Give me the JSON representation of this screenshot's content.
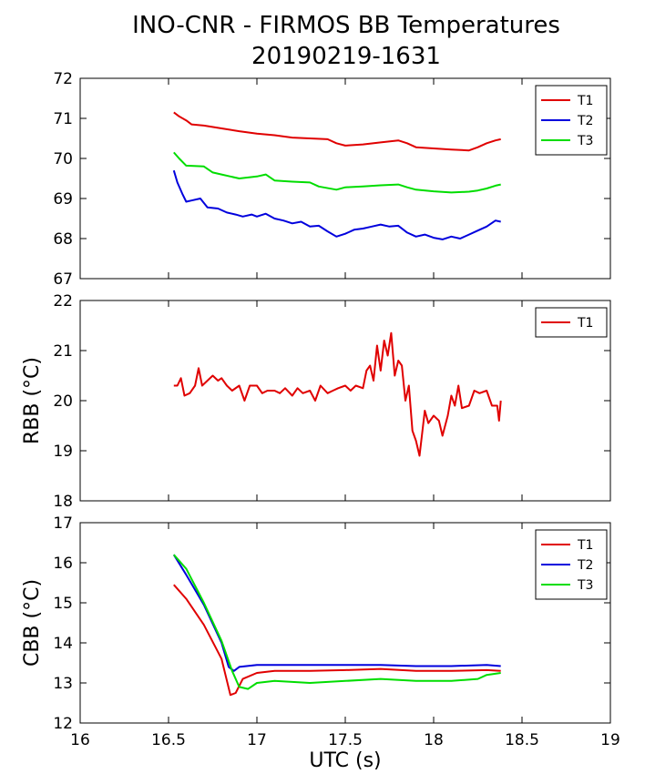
{
  "figure": {
    "title_line1": "INO-CNR - FIRMOS BB Temperatures",
    "title_line2": "20190219-1631"
  },
  "colors": {
    "T1": "#e00000",
    "T2": "#0000dd",
    "T3": "#00dd00"
  },
  "chart_data": [
    {
      "type": "line",
      "title": "",
      "xlabel": "",
      "ylabel": "",
      "xlim": [
        16,
        19
      ],
      "ylim": [
        67,
        72
      ],
      "xticks": [
        16,
        16.5,
        17,
        17.5,
        18,
        18.5,
        19
      ],
      "yticks": [
        67,
        68,
        69,
        70,
        71,
        72
      ],
      "show_xtick_labels": false,
      "legend": "top-right",
      "series": [
        {
          "name": "T1",
          "color": "#e00000",
          "points": [
            [
              16.53,
              71.15
            ],
            [
              16.56,
              71.05
            ],
            [
              16.6,
              70.95
            ],
            [
              16.63,
              70.85
            ],
            [
              16.7,
              70.82
            ],
            [
              16.8,
              70.75
            ],
            [
              16.9,
              70.68
            ],
            [
              17.0,
              70.62
            ],
            [
              17.1,
              70.58
            ],
            [
              17.2,
              70.52
            ],
            [
              17.3,
              70.5
            ],
            [
              17.4,
              70.48
            ],
            [
              17.45,
              70.38
            ],
            [
              17.5,
              70.32
            ],
            [
              17.6,
              70.35
            ],
            [
              17.7,
              70.4
            ],
            [
              17.8,
              70.45
            ],
            [
              17.85,
              70.38
            ],
            [
              17.9,
              70.28
            ],
            [
              18.0,
              70.25
            ],
            [
              18.1,
              70.22
            ],
            [
              18.2,
              70.2
            ],
            [
              18.25,
              70.28
            ],
            [
              18.3,
              70.38
            ],
            [
              18.35,
              70.45
            ],
            [
              18.38,
              70.48
            ]
          ]
        },
        {
          "name": "T2",
          "color": "#0000dd",
          "points": [
            [
              16.53,
              69.7
            ],
            [
              16.55,
              69.4
            ],
            [
              16.58,
              69.1
            ],
            [
              16.6,
              68.92
            ],
            [
              16.63,
              68.95
            ],
            [
              16.68,
              69.0
            ],
            [
              16.72,
              68.78
            ],
            [
              16.78,
              68.75
            ],
            [
              16.83,
              68.65
            ],
            [
              16.88,
              68.6
            ],
            [
              16.92,
              68.55
            ],
            [
              16.97,
              68.6
            ],
            [
              17.0,
              68.55
            ],
            [
              17.05,
              68.62
            ],
            [
              17.1,
              68.5
            ],
            [
              17.15,
              68.45
            ],
            [
              17.2,
              68.38
            ],
            [
              17.25,
              68.42
            ],
            [
              17.3,
              68.3
            ],
            [
              17.35,
              68.32
            ],
            [
              17.4,
              68.18
            ],
            [
              17.45,
              68.05
            ],
            [
              17.5,
              68.12
            ],
            [
              17.55,
              68.22
            ],
            [
              17.6,
              68.25
            ],
            [
              17.65,
              68.3
            ],
            [
              17.7,
              68.35
            ],
            [
              17.75,
              68.3
            ],
            [
              17.8,
              68.32
            ],
            [
              17.85,
              68.15
            ],
            [
              17.9,
              68.05
            ],
            [
              17.95,
              68.1
            ],
            [
              18.0,
              68.02
            ],
            [
              18.05,
              67.98
            ],
            [
              18.1,
              68.05
            ],
            [
              18.15,
              68.0
            ],
            [
              18.2,
              68.1
            ],
            [
              18.25,
              68.2
            ],
            [
              18.3,
              68.3
            ],
            [
              18.35,
              68.45
            ],
            [
              18.38,
              68.42
            ]
          ]
        },
        {
          "name": "T3",
          "color": "#00dd00",
          "points": [
            [
              16.53,
              70.15
            ],
            [
              16.56,
              70.0
            ],
            [
              16.6,
              69.82
            ],
            [
              16.7,
              69.8
            ],
            [
              16.75,
              69.65
            ],
            [
              16.8,
              69.6
            ],
            [
              16.85,
              69.55
            ],
            [
              16.9,
              69.5
            ],
            [
              17.0,
              69.55
            ],
            [
              17.05,
              69.6
            ],
            [
              17.1,
              69.45
            ],
            [
              17.2,
              69.42
            ],
            [
              17.3,
              69.4
            ],
            [
              17.35,
              69.3
            ],
            [
              17.45,
              69.22
            ],
            [
              17.5,
              69.28
            ],
            [
              17.6,
              69.3
            ],
            [
              17.7,
              69.33
            ],
            [
              17.8,
              69.35
            ],
            [
              17.85,
              69.28
            ],
            [
              17.9,
              69.22
            ],
            [
              18.0,
              69.18
            ],
            [
              18.1,
              69.15
            ],
            [
              18.2,
              69.17
            ],
            [
              18.25,
              69.2
            ],
            [
              18.3,
              69.25
            ],
            [
              18.35,
              69.32
            ],
            [
              18.38,
              69.35
            ]
          ]
        }
      ]
    },
    {
      "type": "line",
      "title": "",
      "xlabel": "",
      "ylabel": "RBB (°C)",
      "xlim": [
        16,
        19
      ],
      "ylim": [
        18,
        22
      ],
      "xticks": [
        16,
        16.5,
        17,
        17.5,
        18,
        18.5,
        19
      ],
      "yticks": [
        18,
        19,
        20,
        21,
        22
      ],
      "show_xtick_labels": false,
      "legend": "top-right",
      "series": [
        {
          "name": "T1",
          "color": "#e00000",
          "points": [
            [
              16.53,
              20.3
            ],
            [
              16.55,
              20.3
            ],
            [
              16.57,
              20.45
            ],
            [
              16.59,
              20.1
            ],
            [
              16.62,
              20.15
            ],
            [
              16.65,
              20.3
            ],
            [
              16.67,
              20.65
            ],
            [
              16.69,
              20.3
            ],
            [
              16.72,
              20.4
            ],
            [
              16.75,
              20.5
            ],
            [
              16.78,
              20.4
            ],
            [
              16.8,
              20.45
            ],
            [
              16.83,
              20.3
            ],
            [
              16.86,
              20.2
            ],
            [
              16.9,
              20.3
            ],
            [
              16.93,
              20.0
            ],
            [
              16.96,
              20.3
            ],
            [
              17.0,
              20.3
            ],
            [
              17.03,
              20.15
            ],
            [
              17.06,
              20.2
            ],
            [
              17.1,
              20.2
            ],
            [
              17.13,
              20.15
            ],
            [
              17.16,
              20.25
            ],
            [
              17.2,
              20.1
            ],
            [
              17.23,
              20.25
            ],
            [
              17.26,
              20.15
            ],
            [
              17.3,
              20.2
            ],
            [
              17.33,
              20.0
            ],
            [
              17.36,
              20.3
            ],
            [
              17.4,
              20.15
            ],
            [
              17.43,
              20.2
            ],
            [
              17.46,
              20.25
            ],
            [
              17.5,
              20.3
            ],
            [
              17.53,
              20.2
            ],
            [
              17.56,
              20.3
            ],
            [
              17.6,
              20.25
            ],
            [
              17.62,
              20.6
            ],
            [
              17.64,
              20.7
            ],
            [
              17.66,
              20.4
            ],
            [
              17.68,
              21.1
            ],
            [
              17.7,
              20.6
            ],
            [
              17.72,
              21.2
            ],
            [
              17.74,
              20.9
            ],
            [
              17.76,
              21.35
            ],
            [
              17.78,
              20.5
            ],
            [
              17.8,
              20.8
            ],
            [
              17.82,
              20.7
            ],
            [
              17.84,
              20.0
            ],
            [
              17.86,
              20.3
            ],
            [
              17.88,
              19.4
            ],
            [
              17.9,
              19.2
            ],
            [
              17.92,
              18.9
            ],
            [
              17.95,
              19.8
            ],
            [
              17.97,
              19.55
            ],
            [
              18.0,
              19.7
            ],
            [
              18.03,
              19.6
            ],
            [
              18.05,
              19.3
            ],
            [
              18.08,
              19.7
            ],
            [
              18.1,
              20.1
            ],
            [
              18.12,
              19.9
            ],
            [
              18.14,
              20.3
            ],
            [
              18.16,
              19.85
            ],
            [
              18.2,
              19.9
            ],
            [
              18.23,
              20.2
            ],
            [
              18.26,
              20.15
            ],
            [
              18.3,
              20.2
            ],
            [
              18.33,
              19.9
            ],
            [
              18.36,
              19.9
            ],
            [
              18.37,
              19.6
            ],
            [
              18.38,
              20.0
            ]
          ]
        }
      ]
    },
    {
      "type": "line",
      "title": "",
      "xlabel": "UTC (s)",
      "ylabel": "CBB (°C)",
      "xlim": [
        16,
        19
      ],
      "ylim": [
        12,
        17
      ],
      "xticks": [
        16,
        16.5,
        17,
        17.5,
        18,
        18.5,
        19
      ],
      "yticks": [
        12,
        13,
        14,
        15,
        16,
        17
      ],
      "show_xtick_labels": true,
      "legend": "top-right",
      "series": [
        {
          "name": "T1",
          "color": "#e00000",
          "points": [
            [
              16.53,
              15.45
            ],
            [
              16.6,
              15.1
            ],
            [
              16.7,
              14.45
            ],
            [
              16.8,
              13.6
            ],
            [
              16.85,
              12.7
            ],
            [
              16.88,
              12.75
            ],
            [
              16.92,
              13.1
            ],
            [
              17.0,
              13.25
            ],
            [
              17.1,
              13.3
            ],
            [
              17.3,
              13.3
            ],
            [
              17.5,
              13.32
            ],
            [
              17.7,
              13.35
            ],
            [
              17.9,
              13.3
            ],
            [
              18.1,
              13.3
            ],
            [
              18.3,
              13.32
            ],
            [
              18.38,
              13.3
            ]
          ]
        },
        {
          "name": "T2",
          "color": "#0000dd",
          "points": [
            [
              16.53,
              16.2
            ],
            [
              16.6,
              15.7
            ],
            [
              16.7,
              14.95
            ],
            [
              16.8,
              14.0
            ],
            [
              16.84,
              13.4
            ],
            [
              16.87,
              13.3
            ],
            [
              16.9,
              13.4
            ],
            [
              17.0,
              13.45
            ],
            [
              17.3,
              13.45
            ],
            [
              17.5,
              13.45
            ],
            [
              17.7,
              13.45
            ],
            [
              17.9,
              13.42
            ],
            [
              18.1,
              13.42
            ],
            [
              18.3,
              13.45
            ],
            [
              18.38,
              13.42
            ]
          ]
        },
        {
          "name": "T3",
          "color": "#00dd00",
          "points": [
            [
              16.53,
              16.2
            ],
            [
              16.6,
              15.85
            ],
            [
              16.7,
              15.0
            ],
            [
              16.8,
              14.05
            ],
            [
              16.86,
              13.3
            ],
            [
              16.9,
              12.9
            ],
            [
              16.95,
              12.85
            ],
            [
              17.0,
              13.0
            ],
            [
              17.1,
              13.05
            ],
            [
              17.3,
              13.0
            ],
            [
              17.5,
              13.05
            ],
            [
              17.7,
              13.1
            ],
            [
              17.9,
              13.05
            ],
            [
              18.1,
              13.05
            ],
            [
              18.25,
              13.1
            ],
            [
              18.3,
              13.2
            ],
            [
              18.38,
              13.25
            ]
          ]
        }
      ]
    }
  ]
}
